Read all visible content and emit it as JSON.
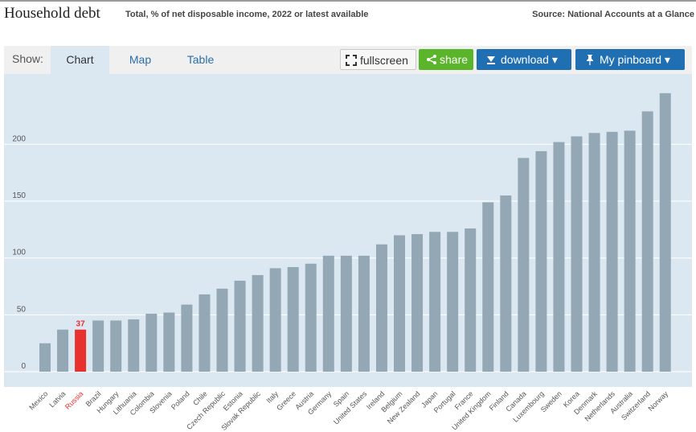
{
  "header": {
    "title": "Household debt",
    "subtitle": "Total, % of net disposable income, 2022 or latest available",
    "source": "Source: National Accounts at a Glance"
  },
  "toolbar": {
    "show_label": "Show:",
    "tabs": [
      "Chart",
      "Map",
      "Table"
    ],
    "fullscreen_label": "fullscreen",
    "share_label": "share",
    "download_label": "download ▾",
    "pinboard_label": "My pinboard ▾"
  },
  "colors": {
    "bar": "#93a8b4",
    "highlight": "#e8302f",
    "plot_bg": "#dce8f1",
    "share_btn": "#5ab52a",
    "primary_btn": "#1f6fb2"
  },
  "chart_data": {
    "type": "bar",
    "title": "Household debt",
    "categories": [
      "Mexico",
      "Latvia",
      "Russia",
      "Brazil",
      "Hungary",
      "Lithuania",
      "Colombia",
      "Slovenia",
      "Poland",
      "Chile",
      "Czech Republic",
      "Estonia",
      "Slovak Republic",
      "Italy",
      "Greece",
      "Austria",
      "Germany",
      "Spain",
      "United States",
      "Ireland",
      "Belgium",
      "New Zealand",
      "Japan",
      "Portugal",
      "France",
      "United Kingdom",
      "Finland",
      "Canada",
      "Luxembourg",
      "Sweden",
      "Korea",
      "Denmark",
      "Netherlands",
      "Australia",
      "Switzerland",
      "Norway"
    ],
    "values": [
      25,
      37,
      37,
      45,
      45,
      46,
      51,
      52,
      59,
      68,
      73,
      80,
      85,
      91,
      92,
      95,
      102,
      102,
      102,
      112,
      120,
      121,
      123,
      123,
      126,
      149,
      155,
      188,
      194,
      202,
      207,
      210,
      211,
      212,
      229,
      245
    ],
    "highlight": "Russia",
    "data_labels": [
      {
        "category": "Russia",
        "text": "37"
      }
    ],
    "yticks": [
      0,
      50,
      100,
      150,
      200
    ],
    "ylim": [
      0,
      255
    ],
    "grid": true,
    "legend": "none"
  }
}
